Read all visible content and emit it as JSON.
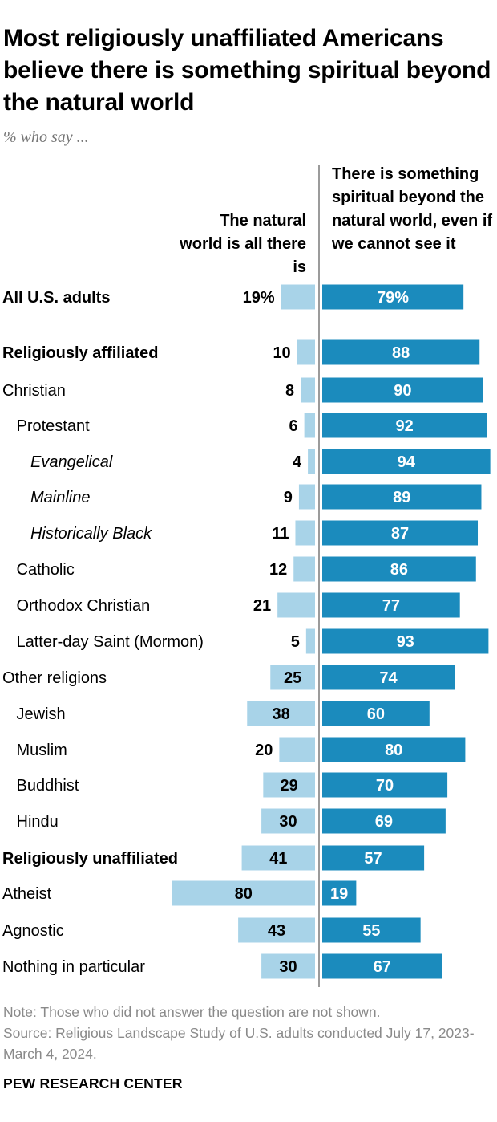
{
  "title": "Most religiously unaffiliated Americans believe there is something spiritual beyond the natural world",
  "subtitle": "% who say ...",
  "note": "Note: Those who did not answer the question are not shown.",
  "source": "Source: Religious Landscape Study of U.S. adults conducted July 17, 2023-March 4, 2024.",
  "org": "PEW RESEARCH CENTER",
  "colors": {
    "left_bar": "#a8d3e8",
    "right_bar": "#1b8bbd",
    "divider": "#7a7a7a"
  },
  "chart_data": {
    "type": "bar",
    "orientation": "horizontal-diverging",
    "series": [
      {
        "name": "The natural world is all there is",
        "values": [
          19,
          10,
          8,
          6,
          4,
          9,
          11,
          12,
          21,
          5,
          25,
          38,
          20,
          29,
          30,
          41,
          80,
          43,
          30
        ]
      },
      {
        "name": "There is something spiritual beyond the natural world, even if we cannot see it",
        "values": [
          79,
          88,
          90,
          92,
          94,
          89,
          87,
          86,
          77,
          93,
          74,
          60,
          80,
          70,
          69,
          57,
          19,
          55,
          67
        ]
      }
    ],
    "categories": [
      "All U.S. adults",
      "Religiously affiliated",
      "Christian",
      "Protestant",
      "Evangelical",
      "Mainline",
      "Historically Black",
      "Catholic",
      "Orthodox Christian",
      "Latter-day Saint (Mormon)",
      "Other religions",
      "Jewish",
      "Muslim",
      "Buddhist",
      "Hindu",
      "Religiously unaffiliated",
      "Atheist",
      "Agnostic",
      "Nothing in particular"
    ],
    "label_style": [
      "bold",
      "bold",
      "normal",
      "normal",
      "italic",
      "italic",
      "italic",
      "normal",
      "normal",
      "normal",
      "normal",
      "normal",
      "normal",
      "normal",
      "normal",
      "bold",
      "normal",
      "normal",
      "normal"
    ],
    "indent": [
      0,
      0,
      0,
      1,
      2,
      2,
      2,
      1,
      1,
      1,
      0,
      1,
      1,
      1,
      1,
      0,
      0,
      0,
      0
    ],
    "left_labels": [
      "19%",
      "10",
      "8",
      "6",
      "4",
      "9",
      "11",
      "12",
      "21",
      "5",
      "25",
      "38",
      "20",
      "29",
      "30",
      "41",
      "80",
      "43",
      "30"
    ],
    "right_labels": [
      "79%",
      "88",
      "90",
      "92",
      "94",
      "89",
      "87",
      "86",
      "77",
      "93",
      "74",
      "60",
      "80",
      "70",
      "69",
      "57",
      "19",
      "55",
      "67"
    ]
  }
}
